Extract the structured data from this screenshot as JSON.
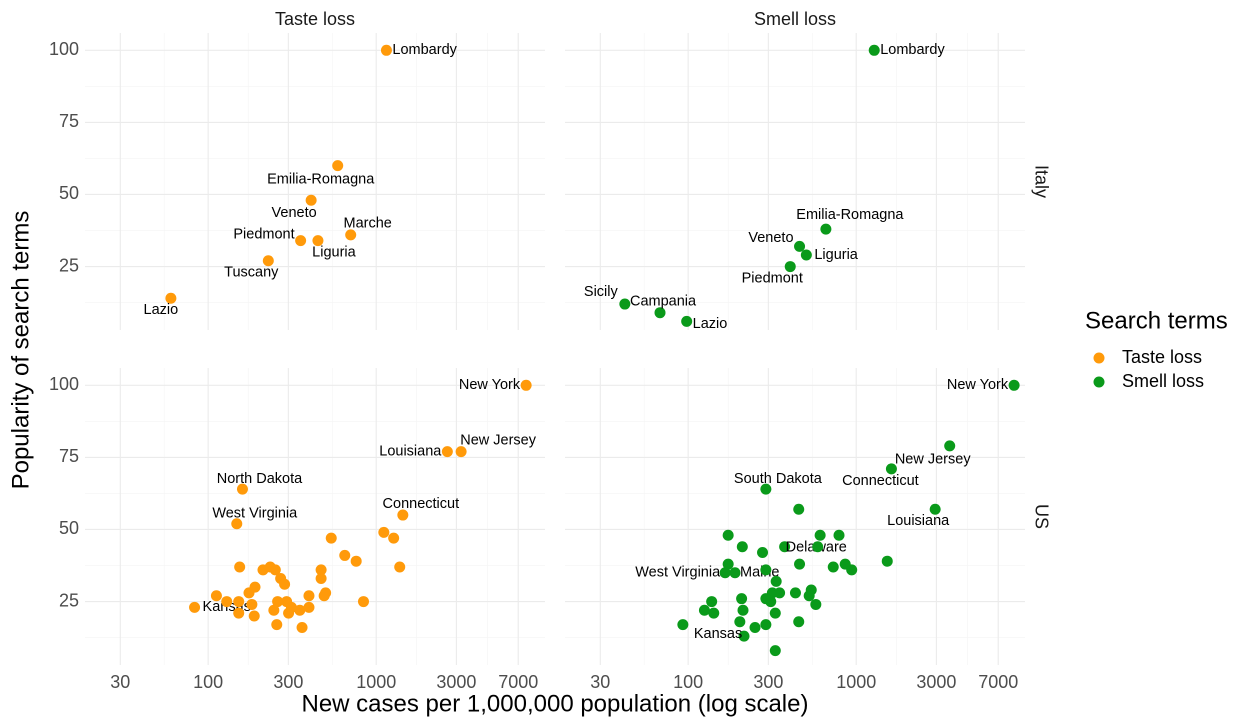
{
  "chart_data": {
    "type": "scatter",
    "xlabel": "New cases per 1,000,000 population (log scale)",
    "ylabel": "Popularity of search terms",
    "xscale": "log",
    "xlim": [
      18.5,
      10100
    ],
    "xticks": [
      30,
      100,
      300,
      1000,
      3000,
      7000
    ],
    "ylim": [
      3,
      106
    ],
    "yticks": [
      25,
      50,
      75,
      100
    ],
    "grid": true,
    "facet_columns": [
      "Taste loss",
      "Smell loss"
    ],
    "facet_rows": [
      "Italy",
      "US"
    ],
    "legend_title": "Search terms",
    "legend_position": "right",
    "series": [
      {
        "name": "Taste loss",
        "color": "#FF9A0A",
        "rows": [
          {
            "x": [
              1150,
              590,
              410,
              705,
              355,
              450,
              228,
              60
            ],
            "values": [
              100,
              60,
              48,
              36,
              34,
              34,
              27,
              14
            ],
            "point_labels": [
              "Lombardy",
              "Emilia-Romagna",
              "Veneto",
              "Marche",
              "Piedmont",
              "Liguria",
              "Tuscany",
              "Lazio"
            ]
          },
          {
            "x": [
              7800,
              3200,
              2650,
              1440,
              160,
              148,
              83,
              112,
              129,
              154,
              152,
              152,
              182,
              175,
              190,
              188,
              212,
              234,
              251,
              270,
              285,
              259,
              293,
              246,
              256,
              301,
              313,
              351,
              362,
              398,
              398,
              470,
              470,
              500,
              540,
              650,
              760,
              490,
              840,
              1110,
              1270,
              1380
            ],
            "values": [
              100,
              77,
              77,
              55,
              64,
              52,
              23,
              27,
              25,
              37,
              25,
              21,
              24,
              28,
              30,
              20,
              36,
              37,
              36,
              33,
              31,
              25,
              25,
              22,
              17,
              21,
              23,
              22,
              16,
              27,
              23,
              36,
              33,
              28,
              47,
              41,
              39,
              27,
              25,
              49,
              47,
              37
            ],
            "point_labels": [
              "New York",
              "New Jersey",
              "Louisiana",
              "Connecticut",
              "North Dakota",
              "West Virginia",
              "Kansas",
              null,
              null,
              null,
              null,
              null,
              null,
              null,
              null,
              null,
              null,
              null,
              null,
              null,
              null,
              null,
              null,
              null,
              null,
              null,
              null,
              null,
              null,
              null,
              null,
              null,
              null,
              null,
              null,
              null,
              null,
              null,
              null,
              null,
              null,
              null
            ]
          }
        ]
      },
      {
        "name": "Smell loss",
        "color": "#0A9A1A",
        "rows": [
          {
            "x": [
              1280,
              660,
              460,
              505,
              405,
              42,
              68,
              98
            ],
            "values": [
              100,
              38,
              32,
              29,
              25,
              12,
              9,
              6
            ],
            "point_labels": [
              "Lombardy",
              "Emilia-Romagna",
              "Veneto",
              "Liguria",
              "Piedmont",
              "Sicily",
              "Campania",
              "Lazio"
            ]
          },
          {
            "x": [
              8700,
              3600,
              1620,
              2950,
              290,
              375,
              190,
              166,
              215,
              93,
              125,
              138,
              142,
              173,
              173,
              210,
              208,
              212,
              203,
              277,
              290,
              334,
              317,
              290,
              310,
              330,
              250,
              290,
              330,
              350,
              435,
              460,
              590,
              610,
              790,
              455,
              540,
              525,
              575,
              730,
              860,
              940,
              1530,
              455
            ],
            "values": [
              100,
              79,
              71,
              57,
              64,
              44,
              35,
              35,
              13,
              17,
              22,
              25,
              21,
              38,
              48,
              44,
              26,
              22,
              18,
              42,
              36,
              32,
              28,
              26,
              25,
              21,
              16,
              17,
              8,
              28,
              28,
              38,
              44,
              48,
              48,
              18,
              29,
              27,
              24,
              37,
              38,
              36,
              39,
              57
            ],
            "point_labels": [
              "New York",
              "New Jersey",
              "Connecticut",
              "Louisiana",
              "South Dakota",
              "Delaware",
              "Maine",
              "West Virginia",
              "Kansas",
              null,
              null,
              null,
              null,
              null,
              null,
              null,
              null,
              null,
              null,
              null,
              null,
              null,
              null,
              null,
              null,
              null,
              null,
              null,
              null,
              null,
              null,
              null,
              null,
              null,
              null,
              null,
              null,
              null,
              null,
              null,
              null,
              null,
              null,
              null
            ]
          }
        ]
      }
    ]
  }
}
